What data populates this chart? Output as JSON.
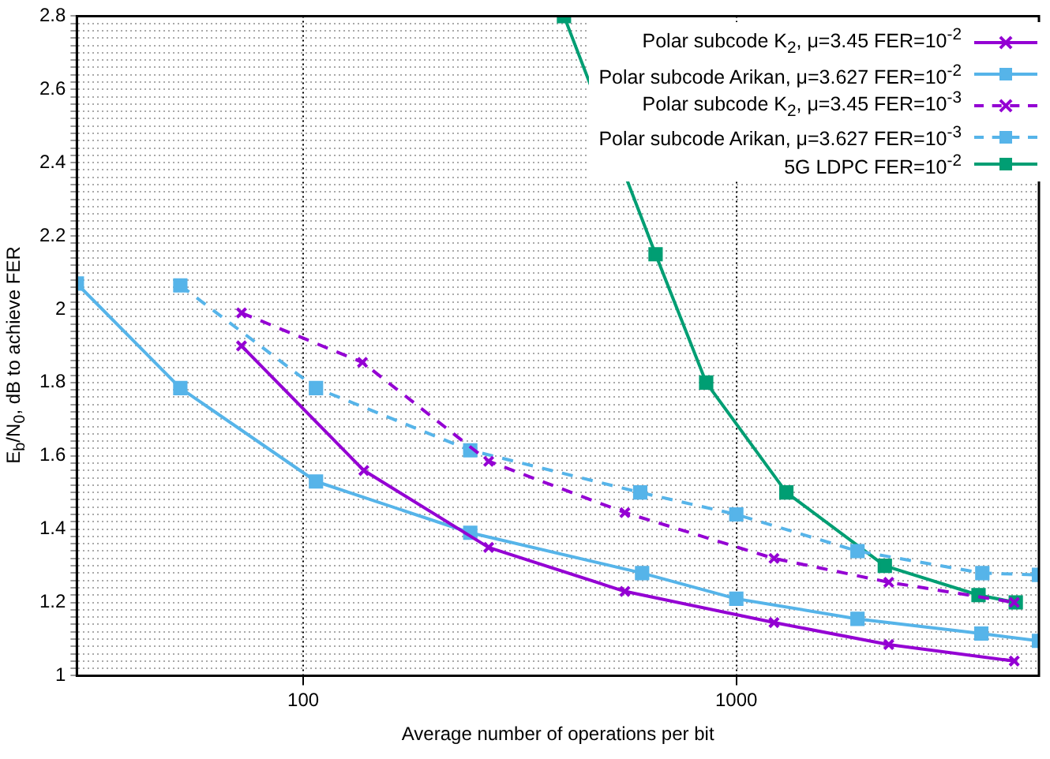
{
  "chart_data": {
    "type": "line",
    "xlabel": "Average number of operations per bit",
    "ylabel": "E$_{b}$/N$_{0}$, dB to achieve FER",
    "log": "x",
    "xlim": [
      30,
      5000
    ],
    "xticks": [
      100,
      1000
    ],
    "ylim": [
      1,
      2.8
    ],
    "yticks": [
      1,
      {
        "value": 1.02,
        "label": null
      },
      {
        "value": 1.04,
        "label": null
      },
      {
        "value": 1.06,
        "label": null
      },
      {
        "value": 1.08,
        "label": null
      },
      {
        "value": 1.1,
        "label": null
      },
      {
        "value": 1.12,
        "label": null
      },
      {
        "value": 1.14,
        "label": null
      },
      {
        "value": 1.16,
        "label": null
      },
      {
        "value": 1.18,
        "label": null
      },
      1.2,
      {
        "value": 1.22,
        "label": null
      },
      {
        "value": 1.24,
        "label": null
      },
      {
        "value": 1.26,
        "label": null
      },
      {
        "value": 1.28,
        "label": null
      },
      {
        "value": 1.3,
        "label": null
      },
      {
        "value": 1.32,
        "label": null
      },
      {
        "value": 1.34,
        "label": null
      },
      {
        "value": 1.36,
        "label": null
      },
      {
        "value": 1.38,
        "label": null
      },
      1.4,
      {
        "value": 1.42,
        "label": null
      },
      {
        "value": 1.44,
        "label": null
      },
      {
        "value": 1.46,
        "label": null
      },
      {
        "value": 1.48,
        "label": null
      },
      {
        "value": 1.5,
        "label": null
      },
      {
        "value": 1.52,
        "label": null
      },
      {
        "value": 1.54,
        "label": null
      },
      {
        "value": 1.56,
        "label": null
      },
      {
        "value": 1.58,
        "label": null
      },
      1.6,
      {
        "value": 1.62,
        "label": null
      },
      {
        "value": 1.64,
        "label": null
      },
      {
        "value": 1.66,
        "label": null
      },
      {
        "value": 1.68,
        "label": null
      },
      {
        "value": 1.7,
        "label": null
      },
      {
        "value": 1.72,
        "label": null
      },
      {
        "value": 1.74,
        "label": null
      },
      {
        "value": 1.76,
        "label": null
      },
      {
        "value": 1.78,
        "label": null
      },
      1.8,
      {
        "value": 1.82,
        "label": null
      },
      {
        "value": 1.84,
        "label": null
      },
      {
        "value": 1.86,
        "label": null
      },
      {
        "value": 1.88,
        "label": null
      },
      {
        "value": 1.9,
        "label": null
      },
      {
        "value": 1.92,
        "label": null
      },
      {
        "value": 1.94,
        "label": null
      },
      {
        "value": 1.96,
        "label": null
      },
      {
        "value": 1.98,
        "label": null
      },
      2,
      {
        "value": 2.02,
        "label": null
      },
      {
        "value": 2.04,
        "label": null
      },
      {
        "value": 2.06,
        "label": null
      },
      {
        "value": 2.08,
        "label": null
      },
      {
        "value": 2.1,
        "label": null
      },
      {
        "value": 2.12,
        "label": null
      },
      {
        "value": 2.14,
        "label": null
      },
      {
        "value": 2.16,
        "label": null
      },
      {
        "value": 2.18,
        "label": null
      },
      2.2,
      {
        "value": 2.22,
        "label": null
      },
      {
        "value": 2.24,
        "label": null
      },
      {
        "value": 2.26,
        "label": null
      },
      {
        "value": 2.28,
        "label": null
      },
      {
        "value": 2.3,
        "label": null
      },
      {
        "value": 2.32,
        "label": null
      },
      {
        "value": 2.34,
        "label": null
      },
      {
        "value": 2.36,
        "label": null
      },
      {
        "value": 2.38,
        "label": null
      },
      2.4,
      {
        "value": 2.42,
        "label": null
      },
      {
        "value": 2.44,
        "label": null
      },
      {
        "value": 2.46,
        "label": null
      },
      {
        "value": 2.48,
        "label": null
      },
      {
        "value": 2.5,
        "label": null
      },
      {
        "value": 2.52,
        "label": null
      },
      {
        "value": 2.54,
        "label": null
      },
      {
        "value": 2.56,
        "label": null
      },
      {
        "value": 2.58,
        "label": null
      },
      2.6,
      {
        "value": 2.62,
        "label": null
      },
      {
        "value": 2.64,
        "label": null
      },
      {
        "value": 2.66,
        "label": null
      },
      {
        "value": 2.68,
        "label": null
      },
      {
        "value": 2.7,
        "label": null
      },
      {
        "value": 2.72,
        "label": null
      },
      {
        "value": 2.74,
        "label": null
      },
      {
        "value": 2.76,
        "label": null
      },
      {
        "value": 2.78,
        "label": null
      },
      2.8
    ],
    "grid": true,
    "legend": "top right",
    "series": [
      {
        "name": "Polar subcode K$_{2}$, μ=3.45 FER=10$^{-2}$",
        "color": "#9400d3",
        "marker": "cross",
        "line_style": "solid",
        "x": [
          72,
          138,
          268,
          553,
          1222,
          2250,
          4385
        ],
        "values": [
          1.9,
          1.56,
          1.35,
          1.23,
          1.145,
          1.085,
          1.04
        ]
      },
      {
        "name": "Polar subcode Arikan, μ=3.627 FER=10$^{-2}$",
        "color": "#56b4e9",
        "marker": "square",
        "line_style": "solid",
        "x": [
          30,
          52,
          107,
          243,
          606,
          1000,
          1905,
          3680,
          5000
        ],
        "values": [
          2.07,
          1.785,
          1.53,
          1.39,
          1.28,
          1.21,
          1.155,
          1.115,
          1.095
        ]
      },
      {
        "name": "Polar subcode K$_{2}$, μ=3.45 FER=10$^{-3}$",
        "color": "#9400d3",
        "marker": "cross",
        "line_style": "dashed",
        "x": [
          72,
          137,
          268,
          553,
          1222,
          2250,
          4385
        ],
        "values": [
          1.99,
          1.855,
          1.585,
          1.445,
          1.32,
          1.255,
          1.2
        ]
      },
      {
        "name": "Polar subcode Arikan, μ=3.627 FER=10$^{-3}$",
        "color": "#56b4e9",
        "marker": "square",
        "line_style": "dashed",
        "x": [
          52,
          107,
          243,
          600,
          1000,
          1905,
          3700,
          5000
        ],
        "values": [
          2.065,
          1.785,
          1.615,
          1.5,
          1.44,
          1.34,
          1.28,
          1.275
        ]
      },
      {
        "name": "5G LDPC FER=10$^{-2}$",
        "color": "#009e73",
        "marker": "square",
        "line_style": "solid",
        "x": [
          400,
          651,
          852,
          1305,
          2203,
          3626,
          4420
        ],
        "values": [
          2.8,
          2.15,
          1.8,
          1.5,
          1.3,
          1.22,
          1.2
        ]
      }
    ]
  }
}
